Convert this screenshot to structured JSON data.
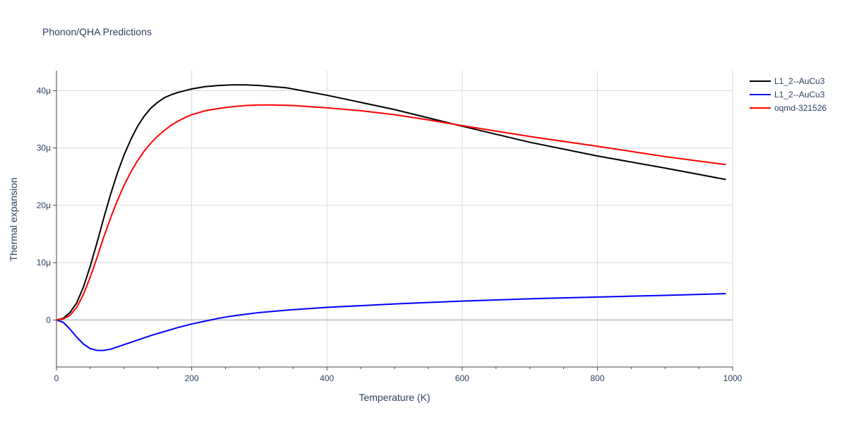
{
  "chart_data": {
    "type": "line",
    "title": "Phonon/QHA Predictions",
    "xlabel": "Temperature (K)",
    "ylabel": "Thermal expansion",
    "xlim": [
      0,
      1000
    ],
    "ylim": [
      -8.2,
      43.5
    ],
    "grid": true,
    "legend_position": "top-right",
    "x_ticks": [
      {
        "value": 0,
        "label": "0"
      },
      {
        "value": 200,
        "label": "200"
      },
      {
        "value": 400,
        "label": "400"
      },
      {
        "value": 600,
        "label": "600"
      },
      {
        "value": 800,
        "label": "800"
      },
      {
        "value": 1000,
        "label": "1000"
      }
    ],
    "y_ticks": [
      {
        "value": 0,
        "label": "0"
      },
      {
        "value": 10,
        "label": "10μ"
      },
      {
        "value": 20,
        "label": "20μ"
      },
      {
        "value": 30,
        "label": "30μ"
      },
      {
        "value": 40,
        "label": "40μ"
      }
    ],
    "series": [
      {
        "name": "L1_2--AuCu3",
        "color": "#000000",
        "x": [
          0,
          10,
          20,
          30,
          40,
          50,
          60,
          70,
          80,
          90,
          100,
          110,
          120,
          130,
          140,
          150,
          160,
          170,
          180,
          190,
          200,
          220,
          240,
          260,
          280,
          300,
          340,
          400,
          500,
          600,
          700,
          800,
          900,
          990
        ],
        "y": [
          0,
          0.3,
          1.3,
          3.0,
          5.8,
          9.4,
          13.5,
          17.8,
          21.9,
          25.6,
          28.8,
          31.5,
          33.8,
          35.6,
          37.0,
          38.0,
          38.8,
          39.3,
          39.7,
          40.0,
          40.3,
          40.7,
          40.9,
          41.0,
          41.0,
          40.9,
          40.5,
          39.2,
          36.7,
          33.8,
          31.0,
          28.6,
          26.5,
          24.5
        ]
      },
      {
        "name": "L1_2--AuCu3",
        "color": "#0000ff",
        "x": [
          0,
          10,
          20,
          30,
          40,
          50,
          60,
          70,
          80,
          90,
          100,
          120,
          140,
          160,
          180,
          200,
          220,
          240,
          260,
          280,
          300,
          350,
          400,
          450,
          500,
          600,
          700,
          800,
          900,
          990
        ],
        "y": [
          0,
          -0.4,
          -1.6,
          -3.0,
          -4.2,
          -5.0,
          -5.3,
          -5.3,
          -5.1,
          -4.7,
          -4.3,
          -3.5,
          -2.7,
          -2.0,
          -1.3,
          -0.7,
          -0.2,
          0.3,
          0.7,
          1.0,
          1.3,
          1.8,
          2.2,
          2.5,
          2.8,
          3.3,
          3.7,
          4.0,
          4.3,
          4.6
        ]
      },
      {
        "name": "oqmd-321526",
        "color": "#ff0000",
        "x": [
          0,
          10,
          20,
          30,
          40,
          50,
          60,
          70,
          80,
          90,
          100,
          110,
          120,
          130,
          140,
          150,
          160,
          170,
          180,
          190,
          200,
          220,
          240,
          260,
          280,
          300,
          320,
          350,
          400,
          450,
          500,
          550,
          600,
          700,
          800,
          900,
          990
        ],
        "y": [
          0,
          0.2,
          0.8,
          2.2,
          4.5,
          7.5,
          10.9,
          14.5,
          17.8,
          20.8,
          23.5,
          25.8,
          27.8,
          29.5,
          30.9,
          32.1,
          33.1,
          34.0,
          34.7,
          35.3,
          35.8,
          36.5,
          36.9,
          37.2,
          37.4,
          37.5,
          37.5,
          37.4,
          37.0,
          36.5,
          35.8,
          34.9,
          33.9,
          32.0,
          30.3,
          28.5,
          27.1
        ]
      }
    ]
  }
}
